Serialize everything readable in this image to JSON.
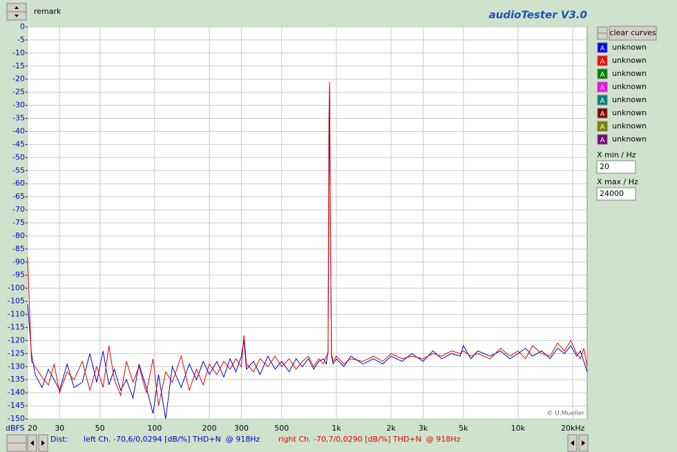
{
  "window": {
    "remark": "remark",
    "app_title": "audioTester  V3.0",
    "clear_button": "clear curves",
    "curves": [
      {
        "icon": "A",
        "label": "unknown",
        "color": "#0000ff"
      },
      {
        "icon": "A",
        "label": "unknown",
        "color": "#ff0000"
      },
      {
        "icon": "A",
        "label": "unknown",
        "color": "#008000"
      },
      {
        "icon": "A",
        "label": "unknown",
        "color": "#ff00ff"
      },
      {
        "icon": "A",
        "label": "unknown",
        "color": "#008080"
      },
      {
        "icon": "A",
        "label": "unknown",
        "color": "#800000"
      },
      {
        "icon": "A",
        "label": "unknown",
        "color": "#808000"
      },
      {
        "icon": "A",
        "label": "unknown",
        "color": "#800080"
      }
    ],
    "xmin_label": "X min / Hz",
    "xmin_value": "20",
    "xmax_label": "X max / Hz",
    "xmax_value": "24000",
    "dist_label": "Dist:",
    "left_status": "left Ch. -70,6/0,0294 [dB/%] THD+N  @ 918Hz",
    "right_status": "right Ch. -70,7/0,0290 [dB/%] THD+N  @ 918Hz",
    "credit": "© U.Mueller"
  },
  "chart_data": {
    "type": "line",
    "x_scale": "log",
    "y_label": "dBFS",
    "grid": true,
    "xlim": [
      20,
      24000
    ],
    "ylim": [
      -150,
      0
    ],
    "xticks": [
      20,
      30,
      50,
      100,
      200,
      300,
      500,
      {
        "value": 1000,
        "label": "1k"
      },
      {
        "value": 2000,
        "label": "2k"
      },
      {
        "value": 3000,
        "label": "3k"
      },
      {
        "value": 5000,
        "label": "5k"
      },
      {
        "value": 10000,
        "label": "10k"
      },
      {
        "value": 20000,
        "label": "20kHz"
      }
    ],
    "yticks": [
      0,
      -5,
      -10,
      -15,
      -20,
      -25,
      -30,
      -35,
      -40,
      -45,
      -50,
      -55,
      -60,
      -65,
      -70,
      -75,
      -80,
      -85,
      -90,
      -95,
      -100,
      -105,
      -110,
      -115,
      -120,
      -125,
      -130,
      -135,
      -140,
      -145,
      -150
    ],
    "x": [
      20,
      21,
      22,
      24,
      26,
      28,
      30,
      33,
      36,
      40,
      44,
      48,
      52,
      56,
      60,
      65,
      70,
      76,
      82,
      90,
      98,
      105,
      115,
      125,
      140,
      155,
      170,
      185,
      200,
      220,
      240,
      260,
      280,
      300,
      310,
      320,
      350,
      380,
      420,
      460,
      500,
      550,
      600,
      650,
      700,
      750,
      800,
      850,
      880,
      900,
      910,
      918,
      926,
      940,
      960,
      1000,
      1100,
      1200,
      1400,
      1600,
      1800,
      2000,
      2300,
      2600,
      3000,
      3400,
      3800,
      4300,
      4800,
      5000,
      5500,
      6000,
      7000,
      8000,
      9000,
      10000,
      11000,
      12000,
      13500,
      15000,
      16500,
      18000,
      19500,
      21000,
      22000,
      23000,
      24000
    ],
    "series": [
      {
        "color": "#0000c0",
        "values": [
          -106,
          -125,
          -133,
          -138,
          -131,
          -135,
          -139,
          -129,
          -138,
          -136,
          -125,
          -136,
          -124,
          -137,
          -131,
          -139,
          -135,
          -142,
          -129,
          -138,
          -148,
          -133,
          -150,
          -130,
          -138,
          -129,
          -135,
          -128,
          -133,
          -128,
          -134,
          -127,
          -132,
          -126,
          -120,
          -131,
          -128,
          -133,
          -126,
          -131,
          -128,
          -132,
          -127,
          -130,
          -127,
          -131,
          -128,
          -127,
          -129,
          -124,
          -60,
          -22,
          -70,
          -126,
          -129,
          -127,
          -130,
          -126,
          -129,
          -127,
          -129,
          -126,
          -128,
          -125,
          -128,
          -124,
          -127,
          -125,
          -126,
          -122,
          -127,
          -124,
          -126,
          -124,
          -127,
          -125,
          -123,
          -126,
          -124,
          -127,
          -123,
          -125,
          -122,
          -126,
          -124,
          -128,
          -132
        ]
      },
      {
        "color": "#e00000",
        "values": [
          -88,
          -128,
          -130,
          -134,
          -137,
          -129,
          -140,
          -132,
          -135,
          -128,
          -139,
          -130,
          -138,
          -122,
          -135,
          -141,
          -128,
          -136,
          -130,
          -140,
          -127,
          -145,
          -132,
          -136,
          -126,
          -139,
          -131,
          -137,
          -129,
          -133,
          -128,
          -131,
          -127,
          -130,
          -118,
          -129,
          -132,
          -127,
          -130,
          -126,
          -130,
          -127,
          -131,
          -128,
          -126,
          -130,
          -127,
          -129,
          -126,
          -125,
          -35,
          -21,
          -69,
          -125,
          -128,
          -126,
          -129,
          -127,
          -128,
          -126,
          -128,
          -125,
          -127,
          -126,
          -127,
          -125,
          -126,
          -124,
          -125,
          -124,
          -126,
          -125,
          -127,
          -123,
          -126,
          -124,
          -127,
          -122,
          -125,
          -126,
          -121,
          -124,
          -120,
          -125,
          -127,
          -123,
          -130
        ]
      }
    ]
  }
}
